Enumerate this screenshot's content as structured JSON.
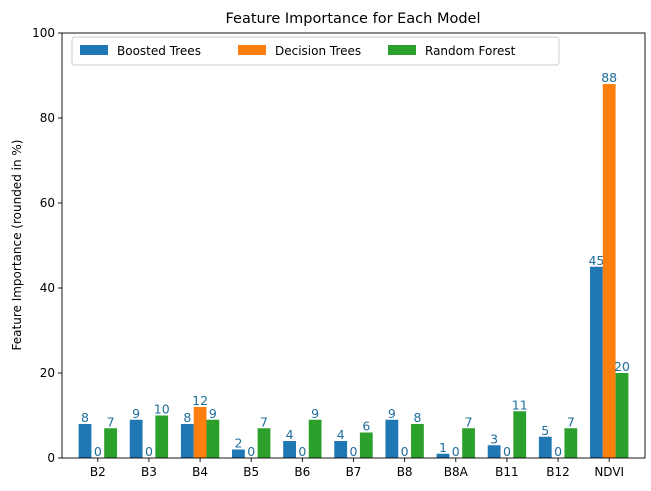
{
  "chart_data": {
    "type": "bar",
    "title": "Feature Importance for Each Model",
    "xlabel": "",
    "ylabel": "Feature Importance (rounded in %)",
    "ylim": [
      0,
      100
    ],
    "yticks": [
      0,
      20,
      40,
      60,
      80,
      100
    ],
    "categories": [
      "B2",
      "B3",
      "B4",
      "B5",
      "B6",
      "B7",
      "B8",
      "B8A",
      "B11",
      "B12",
      "NDVI"
    ],
    "series": [
      {
        "name": "Boosted Trees",
        "color": "#1f77b4",
        "values": [
          8,
          9,
          8,
          2,
          4,
          4,
          9,
          1,
          3,
          5,
          45
        ]
      },
      {
        "name": "Decision Trees",
        "color": "#ff7f0e",
        "values": [
          0,
          0,
          12,
          0,
          0,
          0,
          0,
          0,
          0,
          0,
          88
        ]
      },
      {
        "name": "Random Forest",
        "color": "#2ca02c",
        "values": [
          7,
          10,
          9,
          7,
          9,
          6,
          8,
          7,
          11,
          7,
          20
        ]
      }
    ],
    "label_color": "#1f6e9c",
    "grid": false,
    "legend_position": "top-left"
  }
}
